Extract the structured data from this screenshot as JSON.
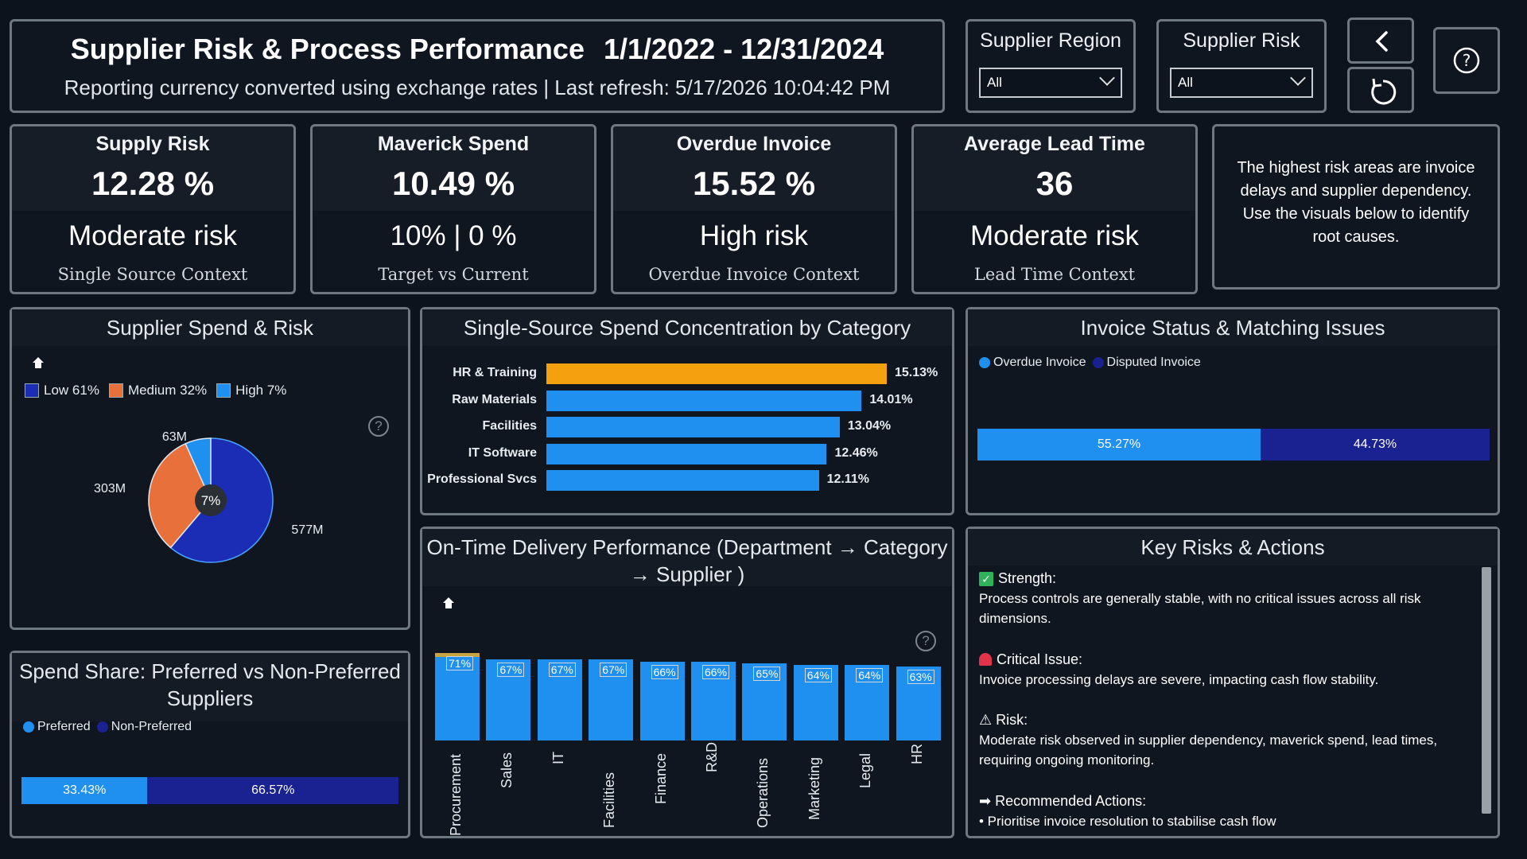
{
  "header": {
    "title": "Supplier Risk & Process Performance",
    "date_range": "1/1/2022 - 12/31/2024",
    "subtitle": "Reporting currency converted using exchange rates | Last refresh: 5/17/2026 10:04:42 PM"
  },
  "slicers": {
    "region": {
      "label": "Supplier Region",
      "value": "All"
    },
    "risk": {
      "label": "Supplier Risk",
      "value": "All"
    }
  },
  "buttons": {
    "back": "back-icon",
    "reset": "reset-icon",
    "help": "help-icon"
  },
  "kpis": [
    {
      "title": "Supply Risk",
      "value": "12.28 %",
      "status": "Moderate risk",
      "context": "Single Source Context"
    },
    {
      "title": "Maverick Spend",
      "value": "10.49 %",
      "status": "10% | 0 %",
      "context": "Target vs Current"
    },
    {
      "title": "Overdue Invoice",
      "value": "15.52 %",
      "status": "High risk",
      "context": "Overdue Invoice Context"
    },
    {
      "title": "Average Lead Time",
      "value": "36",
      "status": "Moderate risk",
      "context": "Lead Time Context"
    }
  ],
  "insight": "The highest risk areas are invoice delays and supplier dependency. Use the visuals below to identify root causes.",
  "colors": {
    "low": "#1a2db4",
    "medium": "#e8703a",
    "high": "#1f8ff0",
    "blue": "#1f8ff0",
    "navy": "#1a2190",
    "orange": "#f5a00f"
  },
  "pie_panel": {
    "title": "Supplier Spend & Risk",
    "legend": [
      "Low 61%",
      "Medium 32%",
      "High 7%"
    ],
    "center_label": "7%",
    "slice_labels": [
      "577M",
      "303M",
      "63M"
    ]
  },
  "share_panel": {
    "title_line1": "Spend Share: Preferred vs Non-Preferred",
    "title_line2": "Suppliers",
    "legend": [
      "Preferred",
      "Non-Preferred"
    ],
    "labels": [
      "33.43%",
      "66.57%"
    ]
  },
  "concentration_panel": {
    "title": "Single-Source Spend Concentration by Category"
  },
  "invoice_panel": {
    "title": "Invoice Status & Matching Issues",
    "legend": [
      "Overdue Invoice",
      "Disputed Invoice"
    ],
    "labels": [
      "55.27%",
      "44.73%"
    ]
  },
  "otd_panel": {
    "title_line1": "On-Time Delivery Performance (Department → Category",
    "title_line2": "→ Supplier )"
  },
  "key_risks": {
    "title": "Key Risks & Actions",
    "strength_head": "Strength:",
    "strength_text": "Process controls are generally stable, with no critical issues across all risk dimensions.",
    "critical_head": "Critical Issue:",
    "critical_text": "Invoice processing delays are severe, impacting cash flow stability.",
    "risk_head": "⚠ Risk:",
    "risk_text": "Moderate risk observed in supplier dependency, maverick spend, lead times, requiring ongoing monitoring.",
    "actions_head": "➡ Recommended Actions:",
    "actions_text": "• Prioritise invoice resolution to stabilise cash flow"
  },
  "chart_data": [
    {
      "type": "pie",
      "categories": [
        "Low",
        "Medium",
        "High"
      ],
      "values": [
        577,
        303,
        63
      ],
      "percents": [
        61,
        32,
        7
      ],
      "unit": "M"
    },
    {
      "type": "bar",
      "orientation": "stacked-horizontal",
      "categories": [
        "Preferred",
        "Non-Preferred"
      ],
      "values": [
        33.43,
        66.57
      ]
    },
    {
      "type": "bar",
      "orientation": "horizontal",
      "categories": [
        "HR & Training",
        "Raw Materials",
        "Facilities",
        "IT Software",
        "Professional Svcs"
      ],
      "values": [
        15.13,
        14.01,
        13.04,
        12.46,
        12.11
      ],
      "value_labels": [
        "15.13%",
        "14.01%",
        "13.04%",
        "12.46%",
        "12.11%"
      ],
      "xlim": [
        0,
        15.13
      ]
    },
    {
      "type": "bar",
      "orientation": "stacked-horizontal",
      "categories": [
        "Overdue Invoice",
        "Disputed Invoice"
      ],
      "values": [
        55.27,
        44.73
      ]
    },
    {
      "type": "bar",
      "orientation": "vertical",
      "categories": [
        "Procurement",
        "Sales",
        "IT",
        "Facilities",
        "Finance",
        "R&D",
        "Operations",
        "Marketing",
        "Legal",
        "HR"
      ],
      "values": [
        71,
        67,
        67,
        67,
        66,
        66,
        65,
        64,
        64,
        63
      ],
      "value_labels": [
        "71%",
        "67%",
        "67%",
        "67%",
        "66%",
        "66%",
        "65%",
        "64%",
        "64%",
        "63%"
      ]
    }
  ]
}
